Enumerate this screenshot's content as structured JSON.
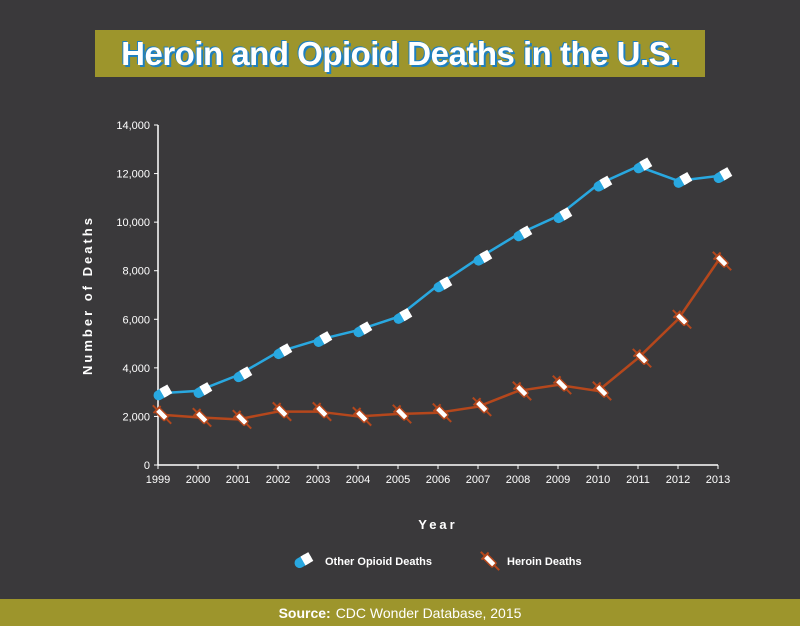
{
  "title": "Heroin and Opioid Deaths in the U.S.",
  "footer": {
    "label": "Source:",
    "text": "CDC Wonder Database, 2015"
  },
  "colors": {
    "background": "#3a393b",
    "accent": "#9d952c",
    "opioid": "#29a8e0",
    "heroin": "#b5471c"
  },
  "chart_data": {
    "type": "line",
    "x": [
      "1999",
      "2000",
      "2001",
      "2002",
      "2003",
      "2004",
      "2005",
      "2006",
      "2007",
      "2008",
      "2009",
      "2010",
      "2011",
      "2012",
      "2013"
    ],
    "xlabel": "Year",
    "ylabel": "Number of Deaths",
    "ylim": [
      0,
      14000
    ],
    "yticks": [
      0,
      2000,
      4000,
      6000,
      8000,
      10000,
      12000,
      14000
    ],
    "ytick_labels": [
      "0",
      "2,000",
      "4,000",
      "6,000",
      "8,000",
      "10,000",
      "12,000",
      "14,000"
    ],
    "grid": false,
    "legend_position": "bottom",
    "series": [
      {
        "name": "Other Opioid Deaths",
        "marker": "pill-icon",
        "color": "#29a8e0",
        "values": [
          2950,
          3050,
          3700,
          4650,
          5150,
          5550,
          6100,
          7400,
          8500,
          9500,
          10250,
          11550,
          12300,
          11700,
          11900
        ]
      },
      {
        "name": "Heroin Deaths",
        "marker": "syringe-icon",
        "color": "#b5471c",
        "values": [
          2080,
          1960,
          1880,
          2200,
          2200,
          2000,
          2100,
          2150,
          2400,
          3050,
          3300,
          3050,
          4400,
          6000,
          8400
        ]
      }
    ]
  }
}
